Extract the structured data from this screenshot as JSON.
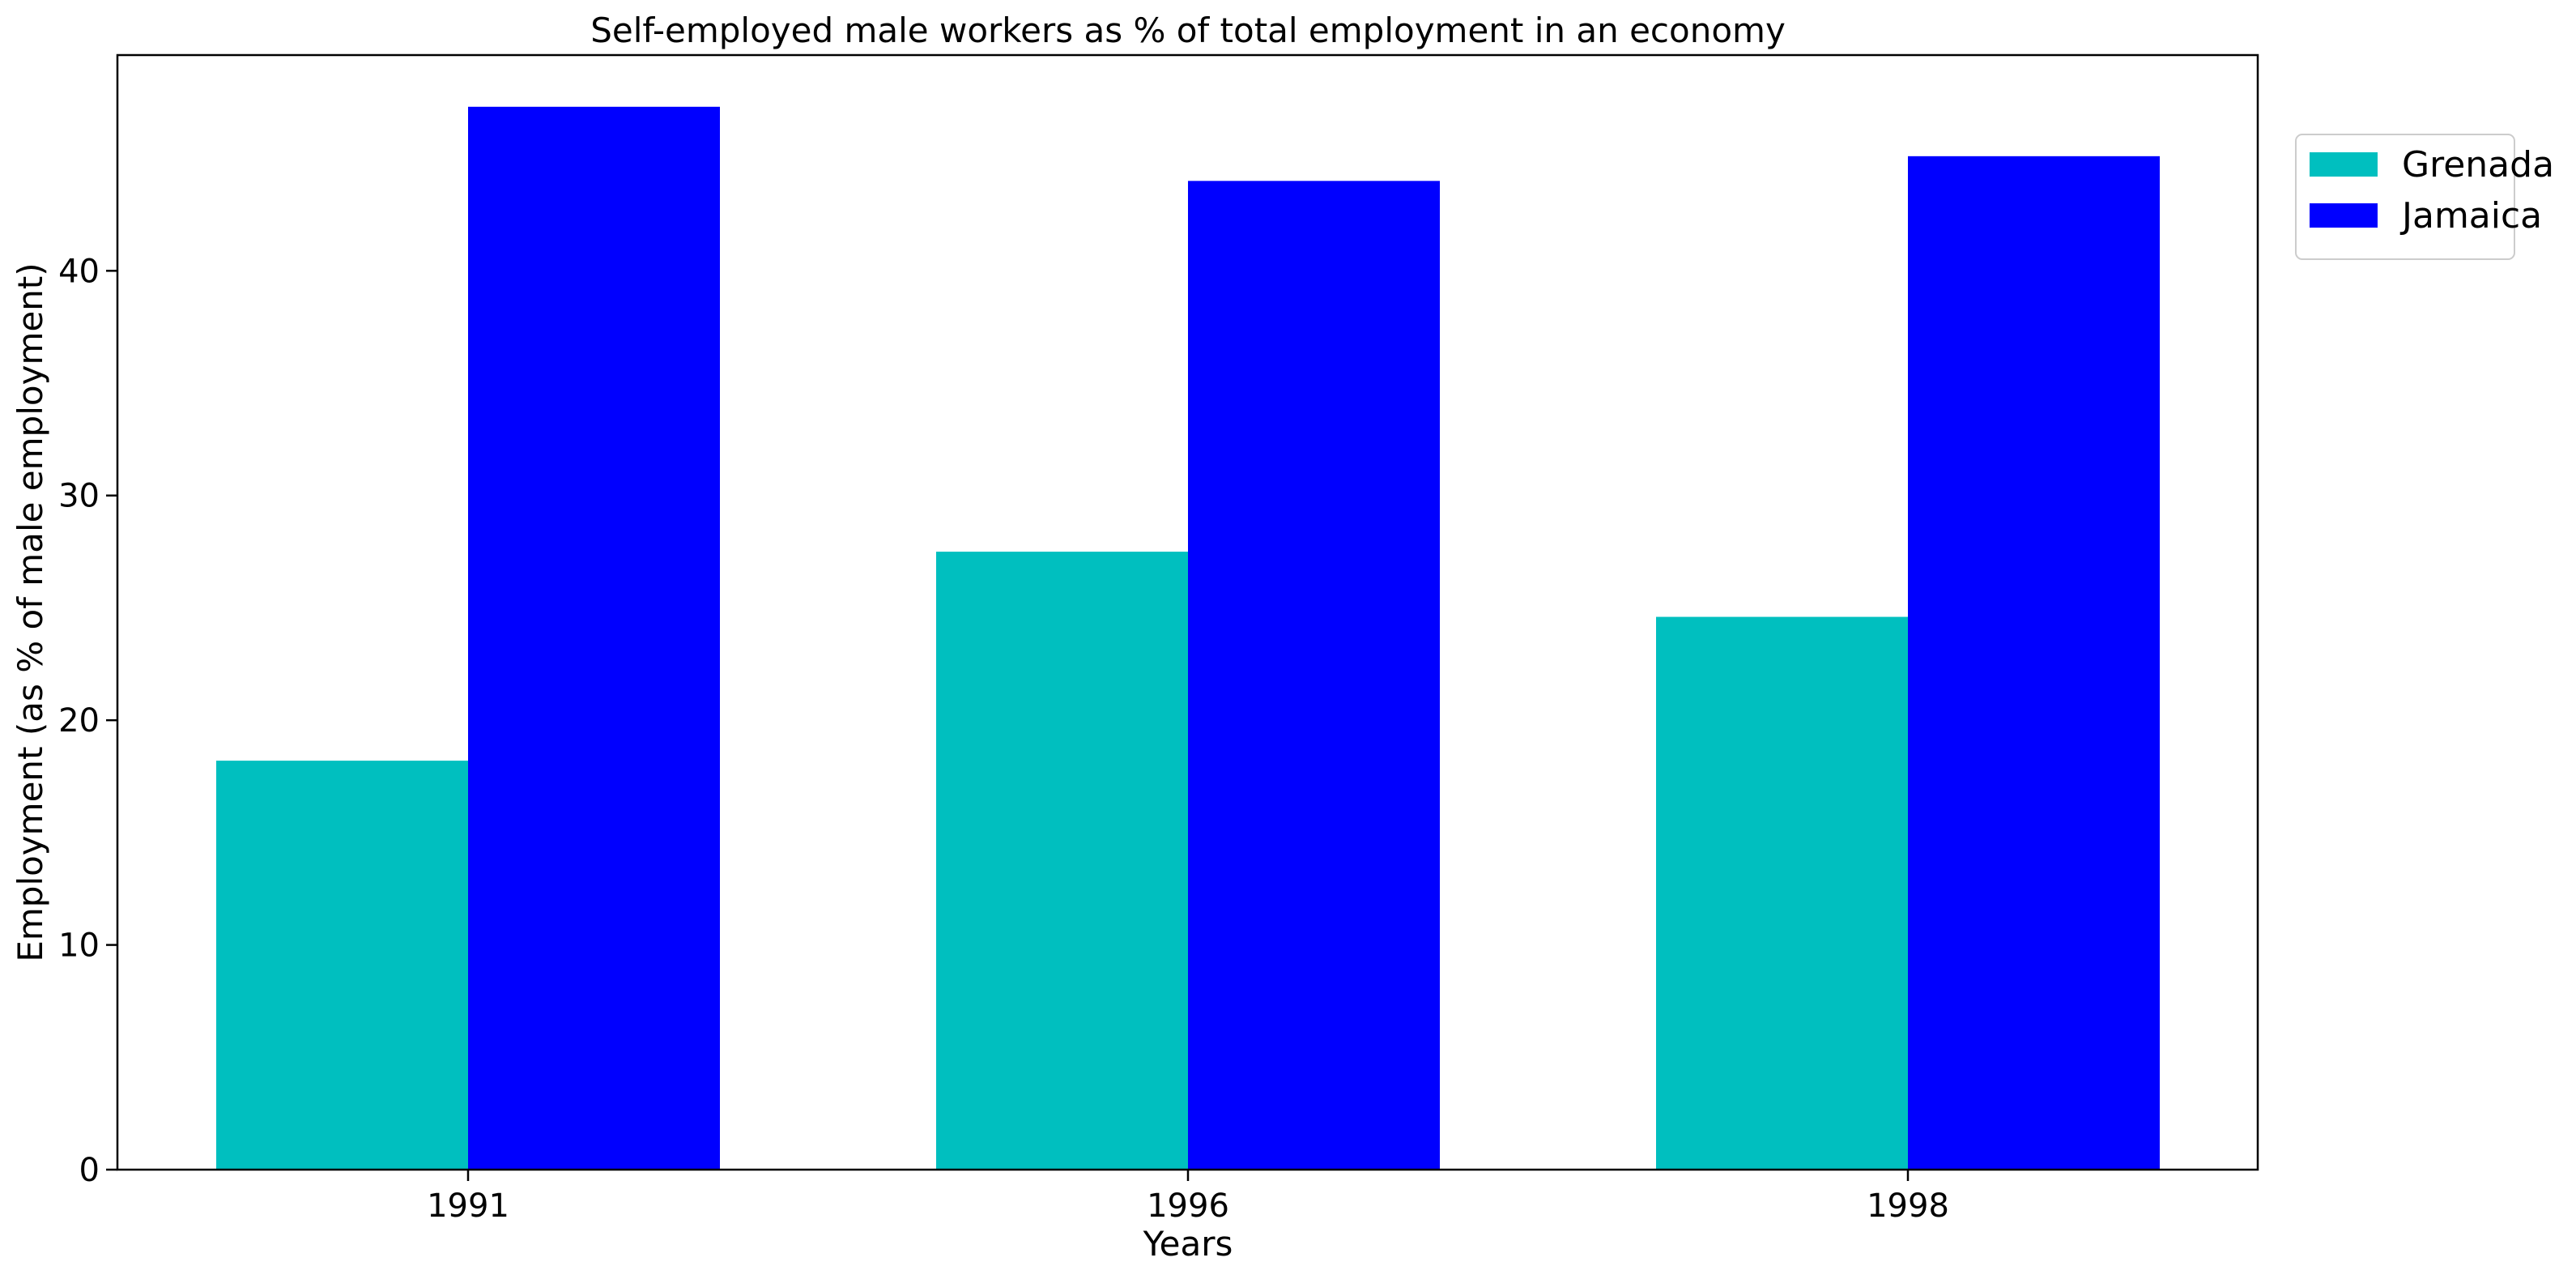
{
  "chart_data": {
    "type": "bar",
    "title": "Self-employed male workers as % of total employment in an economy",
    "xlabel": "Years",
    "ylabel": "Employment (as % of male employment)",
    "categories": [
      "1991",
      "1996",
      "1998"
    ],
    "series": [
      {
        "name": "Grenada",
        "color": "#00bfbf",
        "values": [
          18.2,
          27.5,
          24.6
        ]
      },
      {
        "name": "Jamaica",
        "color": "#0000ff",
        "values": [
          47.3,
          44.0,
          45.1
        ]
      }
    ],
    "ylim": [
      0,
      49.6
    ],
    "yticks": [
      0,
      10,
      20,
      30,
      40
    ],
    "grid": false,
    "legend_position": "upper right outside"
  }
}
